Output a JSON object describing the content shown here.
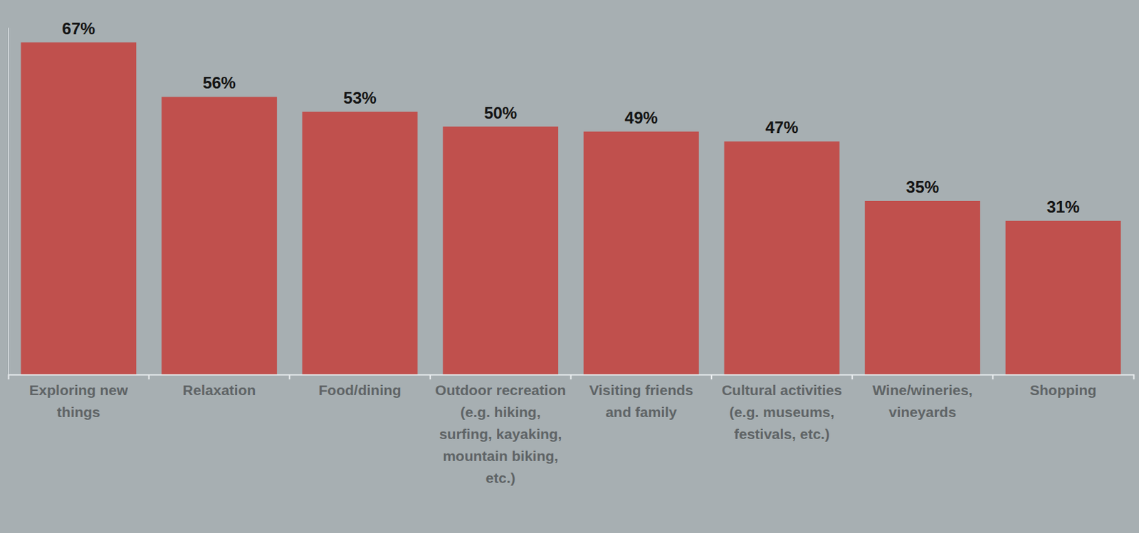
{
  "chart_data": {
    "type": "bar",
    "categories": [
      "Exploring new things",
      "Relaxation",
      "Food/dining",
      "Outdoor recreation (e.g. hiking, surfing, kayaking, mountain biking, etc.)",
      "Visiting friends and family",
      "Cultural activities (e.g. museums, festivals, etc.)",
      "Wine/wineries, vineyards",
      "Shopping"
    ],
    "values": [
      67,
      56,
      53,
      50,
      49,
      47,
      35,
      31
    ],
    "value_labels": [
      "67%",
      "56%",
      "53%",
      "50%",
      "49%",
      "47%",
      "35%",
      "31%"
    ],
    "color": "#c0504d",
    "ylim": [
      0,
      70
    ],
    "data_labels": true,
    "tick_labels": "x",
    "grid": false
  }
}
